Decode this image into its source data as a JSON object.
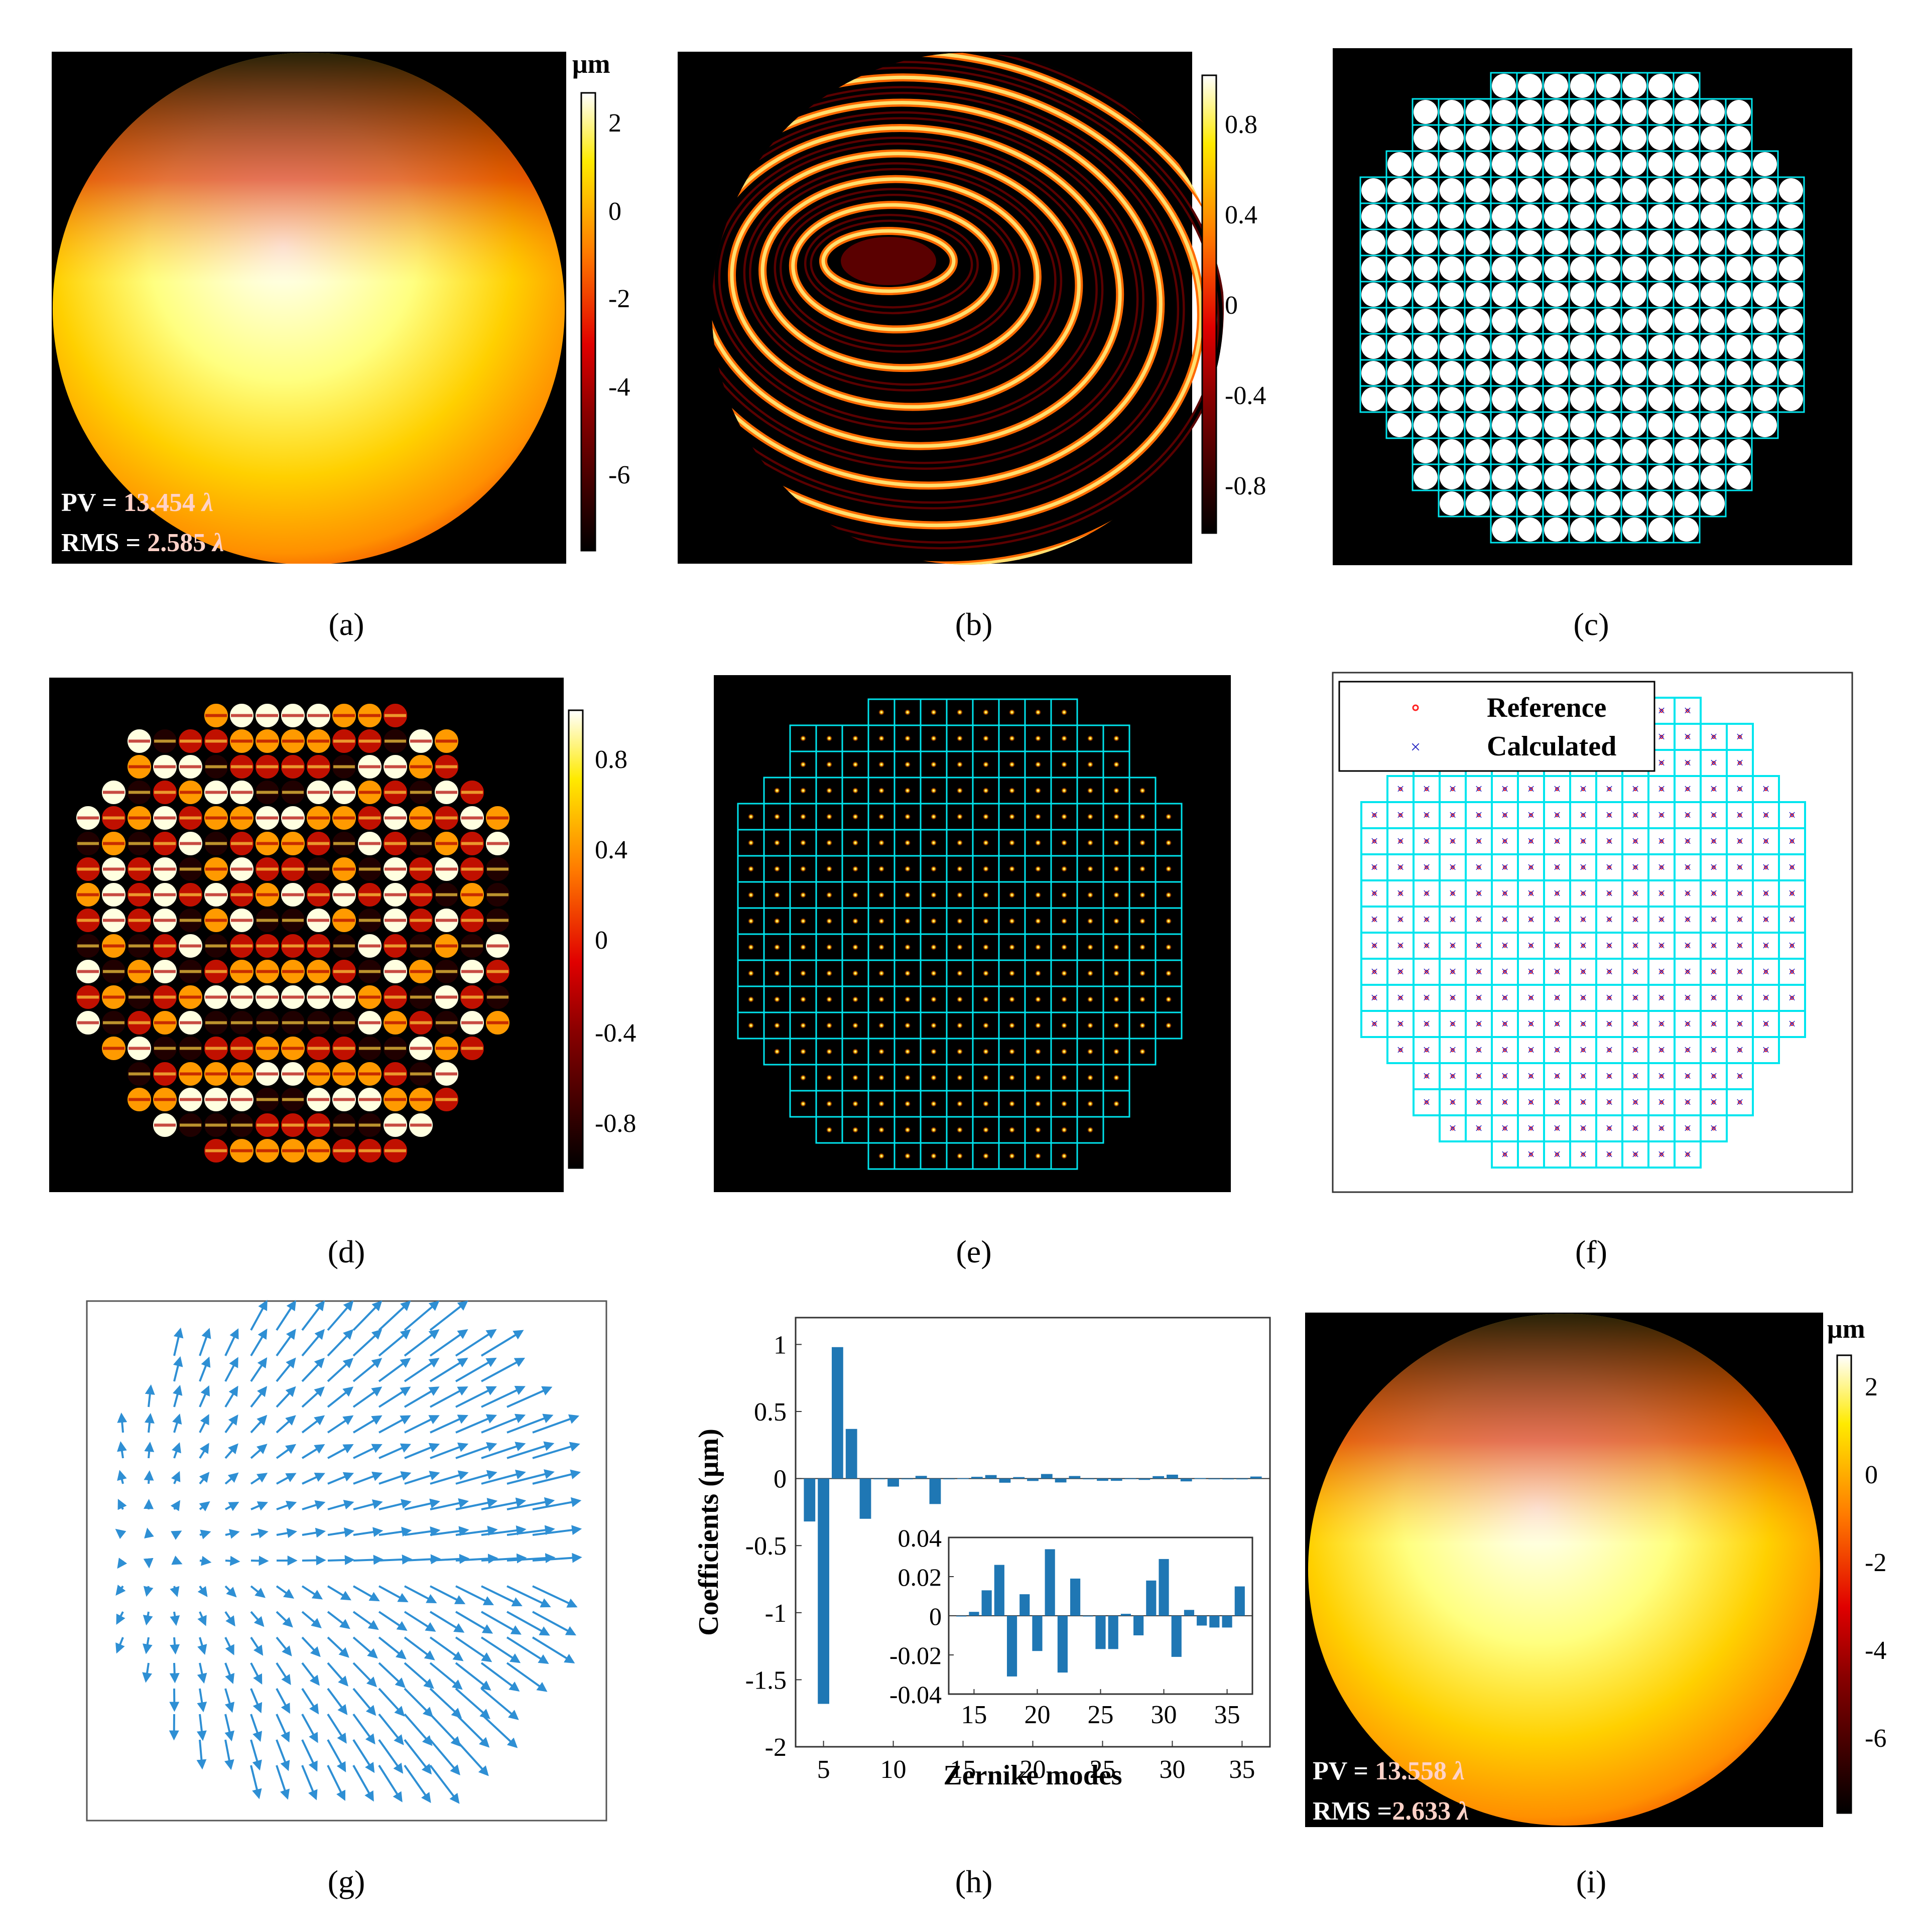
{
  "panels": {
    "a": {
      "caption": "(a)",
      "colorbar_unit": "μm",
      "colorbar_ticks": [
        "2",
        "0",
        "-2",
        "-4",
        "-6"
      ],
      "pv_prefix": "PV = ",
      "pv_value": "13.454",
      "rms_prefix": "RMS = ",
      "rms_value": "2.585",
      "lambda": "λ"
    },
    "b": {
      "caption": "(b)",
      "colorbar_ticks": [
        "0.8",
        "0.4",
        "0",
        "-0.4",
        "-0.8"
      ]
    },
    "c": {
      "caption": "(c)"
    },
    "d": {
      "caption": "(d)",
      "colorbar_ticks": [
        "0.8",
        "0.4",
        "0",
        "-0.4",
        "-0.8"
      ]
    },
    "e": {
      "caption": "(e)"
    },
    "f": {
      "caption": "(f)",
      "legend": [
        "Reference",
        "Calculated"
      ]
    },
    "g": {
      "caption": "(g)"
    },
    "h": {
      "caption": "(h)"
    },
    "i": {
      "caption": "(i)",
      "colorbar_unit": "μm",
      "colorbar_ticks": [
        "2",
        "0",
        "-2",
        "-4",
        "-6"
      ],
      "pv_prefix": "PV = ",
      "pv_value": "13.558",
      "rms_prefix": "RMS =",
      "rms_value": "2.633",
      "lambda": "λ"
    }
  },
  "colors": {
    "accent": "#00e5ee",
    "bar": "#1f77b4",
    "quiver": "#2e8fd4",
    "reference": "#ff2020",
    "calculated": "#2020c0"
  },
  "chart_data": [
    {
      "type": "bar",
      "xlabel": "Zernike modes",
      "ylabel": "Coefficients (μm)",
      "xlim": [
        3,
        37
      ],
      "ylim": [
        -2,
        1.2
      ],
      "xticks": [
        "5",
        "10",
        "15",
        "20",
        "25",
        "30",
        "35"
      ],
      "yticks": [
        "1",
        "0.5",
        "0",
        "-0.5",
        "-1",
        "-1.5",
        "-2"
      ],
      "x": [
        4,
        5,
        6,
        7,
        8,
        9,
        10,
        11,
        12,
        13,
        14,
        15,
        16,
        17,
        18,
        19,
        20,
        21,
        22,
        23,
        24,
        25,
        26,
        27,
        28,
        29,
        30,
        31,
        32,
        33,
        34,
        35,
        36
      ],
      "values": [
        -0.32,
        -1.68,
        0.98,
        0.37,
        -0.3,
        0,
        -0.06,
        0,
        0.02,
        -0.19,
        0,
        0.002,
        0.013,
        0.026,
        -0.031,
        0.011,
        -0.018,
        0.034,
        -0.029,
        0.019,
        0,
        -0.017,
        -0.017,
        0.001,
        -0.01,
        0.018,
        0.029,
        -0.021,
        0.003,
        -0.005,
        -0.006,
        -0.006,
        0.015
      ]
    },
    {
      "type": "bar",
      "title": "inset",
      "xlim": [
        13,
        37
      ],
      "ylim": [
        -0.04,
        0.04
      ],
      "xticks": [
        "15",
        "20",
        "25",
        "30",
        "35"
      ],
      "yticks": [
        "0.04",
        "0.02",
        "0",
        "-0.02",
        "-0.04"
      ],
      "x": [
        14,
        15,
        16,
        17,
        18,
        19,
        20,
        21,
        22,
        23,
        24,
        25,
        26,
        27,
        28,
        29,
        30,
        31,
        32,
        33,
        34,
        35,
        36
      ],
      "values": [
        0,
        0.002,
        0.013,
        0.026,
        -0.031,
        0.011,
        -0.018,
        0.034,
        -0.029,
        0.019,
        0,
        -0.017,
        -0.017,
        0.001,
        -0.01,
        0.018,
        0.029,
        -0.021,
        0.003,
        -0.005,
        -0.006,
        -0.006,
        0.015
      ]
    }
  ]
}
